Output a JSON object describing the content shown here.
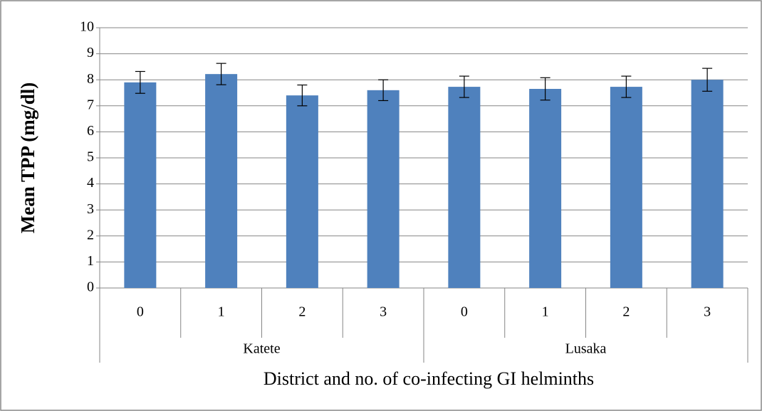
{
  "chart_data": {
    "type": "bar",
    "y_label": "Mean TPP (mg/dl)",
    "x_label": "District and no. of co-infecting GI helminths",
    "groups": [
      {
        "label": "Katete",
        "categories": [
          "0",
          "1",
          "2",
          "3"
        ]
      },
      {
        "label": "Lusaka",
        "categories": [
          "0",
          "1",
          "2",
          "3"
        ]
      }
    ],
    "values": [
      7.9,
      8.22,
      7.4,
      7.6,
      7.73,
      7.65,
      7.73,
      8.0
    ],
    "errors": [
      0.42,
      0.41,
      0.4,
      0.4,
      0.41,
      0.43,
      0.41,
      0.44
    ],
    "color": "#4f81bd",
    "ylim": [
      0,
      10
    ],
    "yticks": [
      0,
      1,
      2,
      3,
      4,
      5,
      6,
      7,
      8,
      9,
      10
    ],
    "grid": true
  }
}
